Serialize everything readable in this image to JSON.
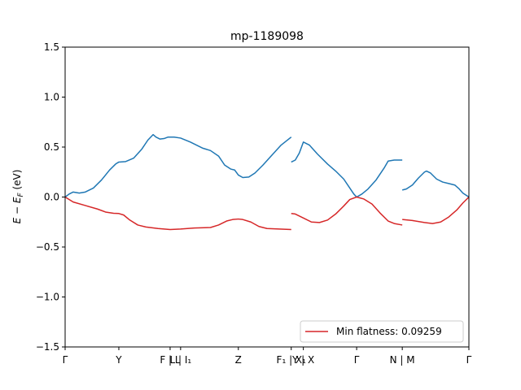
{
  "chart_data": {
    "type": "line",
    "title": "mp-1189098",
    "xlabel": "",
    "ylabel": "E − E_F (eV)",
    "ylim": [
      -1.5,
      1.5
    ],
    "xlim": [
      0,
      1
    ],
    "grid": false,
    "legend_position": "lower-right",
    "y_ticks": [
      {
        "value": -1.5,
        "label": "−1.5"
      },
      {
        "value": -1.0,
        "label": "−1.0"
      },
      {
        "value": -0.5,
        "label": "−0.5"
      },
      {
        "value": 0.0,
        "label": "0.0"
      },
      {
        "value": 0.5,
        "label": "0.5"
      },
      {
        "value": 1.0,
        "label": "1.0"
      },
      {
        "value": 1.5,
        "label": "1.5"
      }
    ],
    "x_ticks": [
      {
        "value": 0.0,
        "label": "Γ"
      },
      {
        "value": 0.133,
        "label": "Y"
      },
      {
        "value": 0.26,
        "label": "F | L"
      },
      {
        "value": 0.286,
        "label": "L | I₁"
      },
      {
        "value": 0.429,
        "label": "Z"
      },
      {
        "value": 0.56,
        "label": "F₁ | X₁"
      },
      {
        "value": 0.59,
        "label": "Y | X"
      },
      {
        "value": 0.722,
        "label": "Γ"
      },
      {
        "value": 0.835,
        "label": "N | M"
      },
      {
        "value": 1.0,
        "label": "Γ"
      }
    ],
    "series": [
      {
        "name": "",
        "color": "#1f77b4",
        "segments": [
          [
            [
              0.0,
              0.0
            ],
            [
              0.01,
              0.03
            ],
            [
              0.02,
              0.05
            ],
            [
              0.035,
              0.04
            ],
            [
              0.05,
              0.05
            ],
            [
              0.07,
              0.09
            ],
            [
              0.09,
              0.17
            ],
            [
              0.11,
              0.27
            ],
            [
              0.125,
              0.33
            ],
            [
              0.133,
              0.35
            ],
            [
              0.15,
              0.355
            ],
            [
              0.17,
              0.39
            ],
            [
              0.19,
              0.48
            ],
            [
              0.205,
              0.57
            ],
            [
              0.218,
              0.625
            ],
            [
              0.225,
              0.6
            ],
            [
              0.235,
              0.58
            ],
            [
              0.245,
              0.585
            ],
            [
              0.255,
              0.6
            ],
            [
              0.27,
              0.6
            ],
            [
              0.286,
              0.59
            ],
            [
              0.31,
              0.55
            ],
            [
              0.34,
              0.49
            ],
            [
              0.36,
              0.465
            ],
            [
              0.38,
              0.41
            ],
            [
              0.395,
              0.32
            ],
            [
              0.41,
              0.28
            ],
            [
              0.42,
              0.27
            ],
            [
              0.429,
              0.22
            ],
            [
              0.44,
              0.195
            ],
            [
              0.455,
              0.2
            ],
            [
              0.47,
              0.24
            ],
            [
              0.49,
              0.32
            ],
            [
              0.51,
              0.41
            ],
            [
              0.535,
              0.52
            ],
            [
              0.56,
              0.6
            ]
          ],
          [
            [
              0.56,
              0.35
            ],
            [
              0.57,
              0.37
            ],
            [
              0.58,
              0.44
            ],
            [
              0.59,
              0.55
            ],
            [
              0.605,
              0.52
            ],
            [
              0.625,
              0.43
            ],
            [
              0.65,
              0.33
            ],
            [
              0.67,
              0.26
            ],
            [
              0.69,
              0.18
            ],
            [
              0.705,
              0.09
            ],
            [
              0.715,
              0.03
            ],
            [
              0.722,
              0.0
            ],
            [
              0.735,
              0.03
            ],
            [
              0.75,
              0.08
            ],
            [
              0.77,
              0.17
            ],
            [
              0.79,
              0.29
            ],
            [
              0.8,
              0.36
            ],
            [
              0.815,
              0.37
            ],
            [
              0.835,
              0.37
            ]
          ],
          [
            [
              0.835,
              0.07
            ],
            [
              0.845,
              0.08
            ],
            [
              0.86,
              0.12
            ],
            [
              0.875,
              0.19
            ],
            [
              0.89,
              0.25
            ],
            [
              0.895,
              0.26
            ],
            [
              0.905,
              0.24
            ],
            [
              0.92,
              0.18
            ],
            [
              0.935,
              0.15
            ],
            [
              0.95,
              0.135
            ],
            [
              0.965,
              0.12
            ],
            [
              0.975,
              0.085
            ],
            [
              0.985,
              0.04
            ],
            [
              1.0,
              0.0
            ]
          ]
        ]
      },
      {
        "name": "Min flatness: 0.09259",
        "color": "#d62728",
        "segments": [
          [
            [
              0.0,
              0.0
            ],
            [
              0.02,
              -0.05
            ],
            [
              0.05,
              -0.085
            ],
            [
              0.08,
              -0.12
            ],
            [
              0.1,
              -0.15
            ],
            [
              0.12,
              -0.163
            ],
            [
              0.133,
              -0.165
            ],
            [
              0.145,
              -0.18
            ],
            [
              0.16,
              -0.23
            ],
            [
              0.18,
              -0.28
            ],
            [
              0.2,
              -0.3
            ],
            [
              0.23,
              -0.315
            ],
            [
              0.26,
              -0.325
            ],
            [
              0.286,
              -0.32
            ],
            [
              0.32,
              -0.31
            ],
            [
              0.36,
              -0.305
            ],
            [
              0.38,
              -0.28
            ],
            [
              0.4,
              -0.24
            ],
            [
              0.415,
              -0.225
            ],
            [
              0.429,
              -0.22
            ],
            [
              0.44,
              -0.225
            ],
            [
              0.46,
              -0.25
            ],
            [
              0.48,
              -0.295
            ],
            [
              0.5,
              -0.315
            ],
            [
              0.53,
              -0.32
            ],
            [
              0.56,
              -0.325
            ]
          ],
          [
            [
              0.56,
              -0.165
            ],
            [
              0.57,
              -0.17
            ],
            [
              0.59,
              -0.21
            ],
            [
              0.61,
              -0.25
            ],
            [
              0.63,
              -0.255
            ],
            [
              0.65,
              -0.23
            ],
            [
              0.67,
              -0.17
            ],
            [
              0.69,
              -0.09
            ],
            [
              0.705,
              -0.025
            ],
            [
              0.722,
              0.0
            ],
            [
              0.74,
              -0.02
            ],
            [
              0.76,
              -0.07
            ],
            [
              0.78,
              -0.16
            ],
            [
              0.8,
              -0.24
            ],
            [
              0.815,
              -0.265
            ],
            [
              0.835,
              -0.28
            ]
          ],
          [
            [
              0.835,
              -0.225
            ],
            [
              0.86,
              -0.235
            ],
            [
              0.89,
              -0.255
            ],
            [
              0.91,
              -0.265
            ],
            [
              0.93,
              -0.25
            ],
            [
              0.95,
              -0.2
            ],
            [
              0.97,
              -0.13
            ],
            [
              0.985,
              -0.06
            ],
            [
              1.0,
              0.0
            ]
          ]
        ]
      }
    ]
  }
}
